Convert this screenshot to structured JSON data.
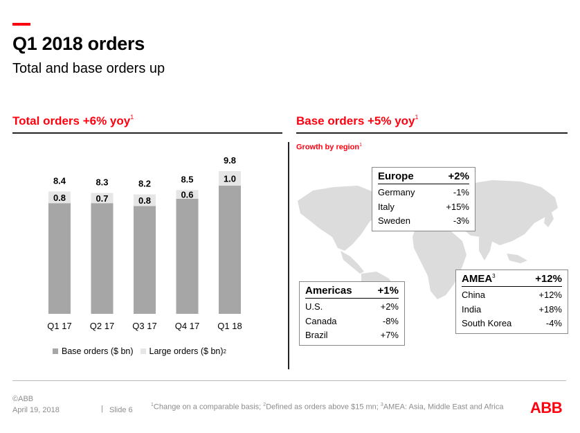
{
  "header": {
    "title": "Q1 2018 orders",
    "subtitle": "Total and base orders up",
    "accent_color": "#ff000f"
  },
  "left_section": {
    "heading": "Total orders +6% yoy",
    "heading_sup": "1",
    "legend": {
      "base_label": "Base orders ($ bn)",
      "large_label": "Large orders ($ bn)",
      "large_sup": "2"
    }
  },
  "right_section": {
    "heading": "Base orders +5% yoy",
    "heading_sup": "1",
    "growth_label": "Growth by region",
    "growth_sup": "1",
    "map_icon": "world-map-icon",
    "regions": {
      "europe": {
        "name": "Europe",
        "value": "+2%",
        "rows": [
          {
            "country": "Germany",
            "value": "-1%"
          },
          {
            "country": "Italy",
            "value": "+15%"
          },
          {
            "country": "Sweden",
            "value": "-3%"
          }
        ]
      },
      "americas": {
        "name": "Americas",
        "value": "+1%",
        "rows": [
          {
            "country": "U.S.",
            "value": "+2%"
          },
          {
            "country": "Canada",
            "value": "-8%"
          },
          {
            "country": "Brazil",
            "value": "+7%"
          }
        ]
      },
      "amea": {
        "name": "AMEA",
        "sup": "3",
        "value": "+12%",
        "rows": [
          {
            "country": "China",
            "value": "+12%"
          },
          {
            "country": "India",
            "value": "+18%"
          },
          {
            "country": "South Korea",
            "value": "-4%"
          }
        ]
      }
    }
  },
  "footer": {
    "copyright": "©ABB",
    "date": "April 19, 2018",
    "separator": "|",
    "slide": "Slide 6",
    "footnote_sup1": "1",
    "footnote_part1": "Change on a comparable basis; ",
    "footnote_sup2": "2",
    "footnote_part2": "Defined as orders above $15 mn; ",
    "footnote_sup3": "3",
    "footnote_part3": "AMEA: Asia, Middle East and Africa",
    "logo": "ABB"
  },
  "colors": {
    "base_bar": "#a6a6a6",
    "large_bar": "#e6e6e6",
    "map_fill": "#dcdcdc"
  },
  "chart_data": {
    "type": "bar",
    "stacked": true,
    "categories": [
      "Q1 17",
      "Q2 17",
      "Q3 17",
      "Q4 17",
      "Q1 18"
    ],
    "series": [
      {
        "name": "Base orders ($ bn)",
        "values": [
          7.6,
          7.6,
          7.4,
          7.9,
          8.8
        ]
      },
      {
        "name": "Large orders ($ bn)",
        "values": [
          0.8,
          0.7,
          0.8,
          0.6,
          1.0
        ]
      }
    ],
    "totals": [
      8.4,
      8.3,
      8.2,
      8.5,
      9.8
    ],
    "large_labels": [
      "0.8",
      "0.7",
      "0.8",
      "0.6",
      "1.0"
    ],
    "total_labels": [
      "8.4",
      "8.3",
      "8.2",
      "8.5",
      "9.8"
    ],
    "ylim": [
      0,
      9.8
    ],
    "grid": false,
    "legend_position": "bottom"
  }
}
